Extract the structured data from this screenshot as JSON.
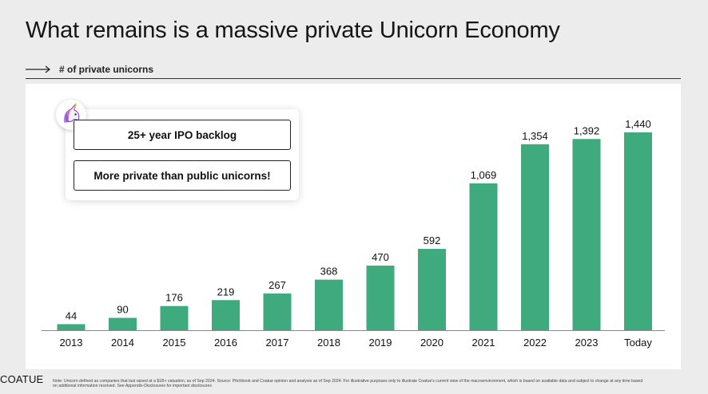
{
  "slide": {
    "title": "What remains is a massive private Unicorn Economy",
    "section_label": "# of private unicorns",
    "callouts": [
      "25+ year IPO backlog",
      "More private than public unicorns!"
    ],
    "logo": "COATUE",
    "footnote": "Note: Unicorn defined as companies that last raised at a $1B+ valuation, as of Sep 2024. Source: Pitchbook and Coatue opinion and analysis as of Sep 2024. For illustrative purposes only to illustrate Coatue's current view of the macroenvironment, which is based on available data and subject to change at any time based on additional information received. See Appendix-Disclosures for important disclosures"
  },
  "chart_data": {
    "type": "bar",
    "categories": [
      "2013",
      "2014",
      "2015",
      "2016",
      "2017",
      "2018",
      "2019",
      "2020",
      "2021",
      "2022",
      "2023",
      "Today"
    ],
    "values": [
      44,
      90,
      176,
      219,
      267,
      368,
      470,
      592,
      1069,
      1354,
      1392,
      1440
    ],
    "value_labels": [
      "44",
      "90",
      "176",
      "219",
      "267",
      "368",
      "470",
      "592",
      "1,069",
      "1,354",
      "1,392",
      "1,440"
    ],
    "bar_color": "#3faa7e",
    "ylim": [
      0,
      1440
    ],
    "grid": false
  },
  "icons": {
    "unicorn": "unicorn-icon",
    "arrow": "right-arrow-icon"
  }
}
